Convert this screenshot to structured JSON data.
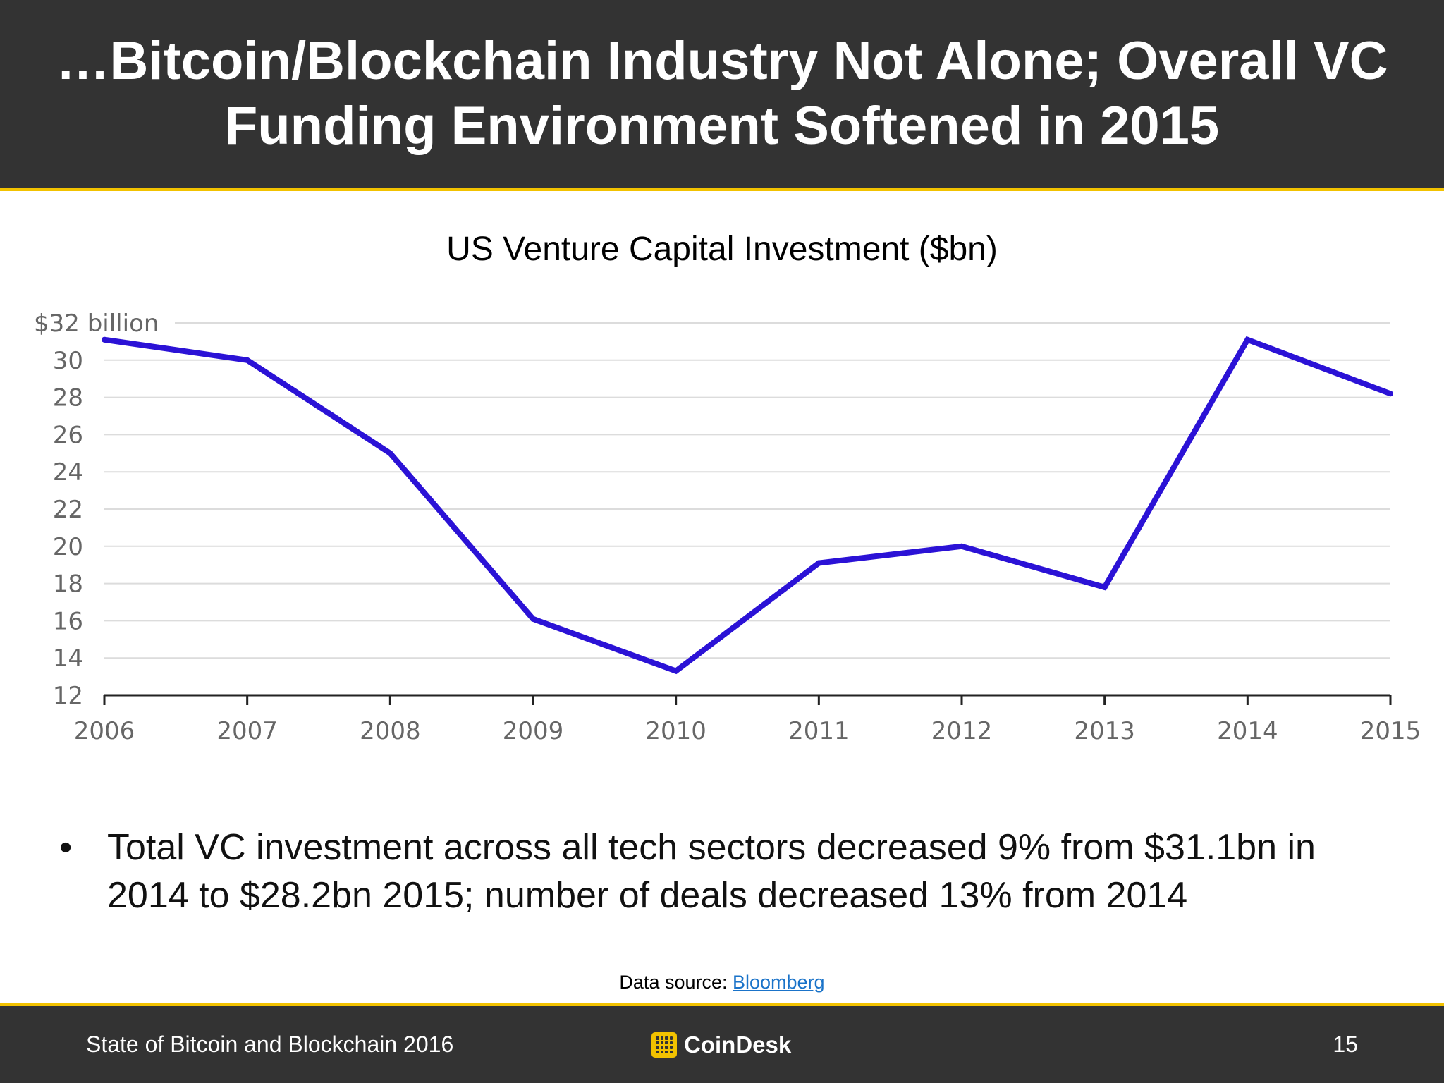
{
  "slide": {
    "title": "…Bitcoin/Blockchain Industry Not Alone; Overall VC Funding Environment Softened in 2015",
    "bullet": "Total VC investment across all tech sectors decreased 9% from $31.1bn in 2014 to $28.2bn 2015; number of deals decreased 13% from 2014",
    "source_label": "Data source: ",
    "source_link": "Bloomberg"
  },
  "footer": {
    "left": "State of Bitcoin and Blockchain 2016",
    "logo_text": "CoinDesk",
    "page_number": "15"
  },
  "colors": {
    "header_bg": "#333333",
    "accent": "#f2c200",
    "line": "#2b12d6",
    "link": "#1a73c9"
  },
  "chart_data": {
    "type": "line",
    "title": "US Venture Capital Investment ($bn)",
    "xlabel": "",
    "ylabel": "",
    "x": [
      "2006",
      "2007",
      "2008",
      "2009",
      "2010",
      "2011",
      "2012",
      "2013",
      "2014",
      "2015"
    ],
    "values": [
      31.1,
      30.0,
      25.0,
      16.1,
      13.3,
      19.1,
      20.0,
      17.8,
      31.1,
      28.2
    ],
    "ylim": [
      12,
      32
    ],
    "yticks": [
      12,
      14,
      16,
      18,
      20,
      22,
      24,
      26,
      28,
      30,
      32
    ],
    "ytick_labels": [
      "12",
      "14",
      "16",
      "18",
      "20",
      "22",
      "24",
      "26",
      "28",
      "30",
      "$32 billion"
    ],
    "grid": true,
    "legend": "none"
  }
}
